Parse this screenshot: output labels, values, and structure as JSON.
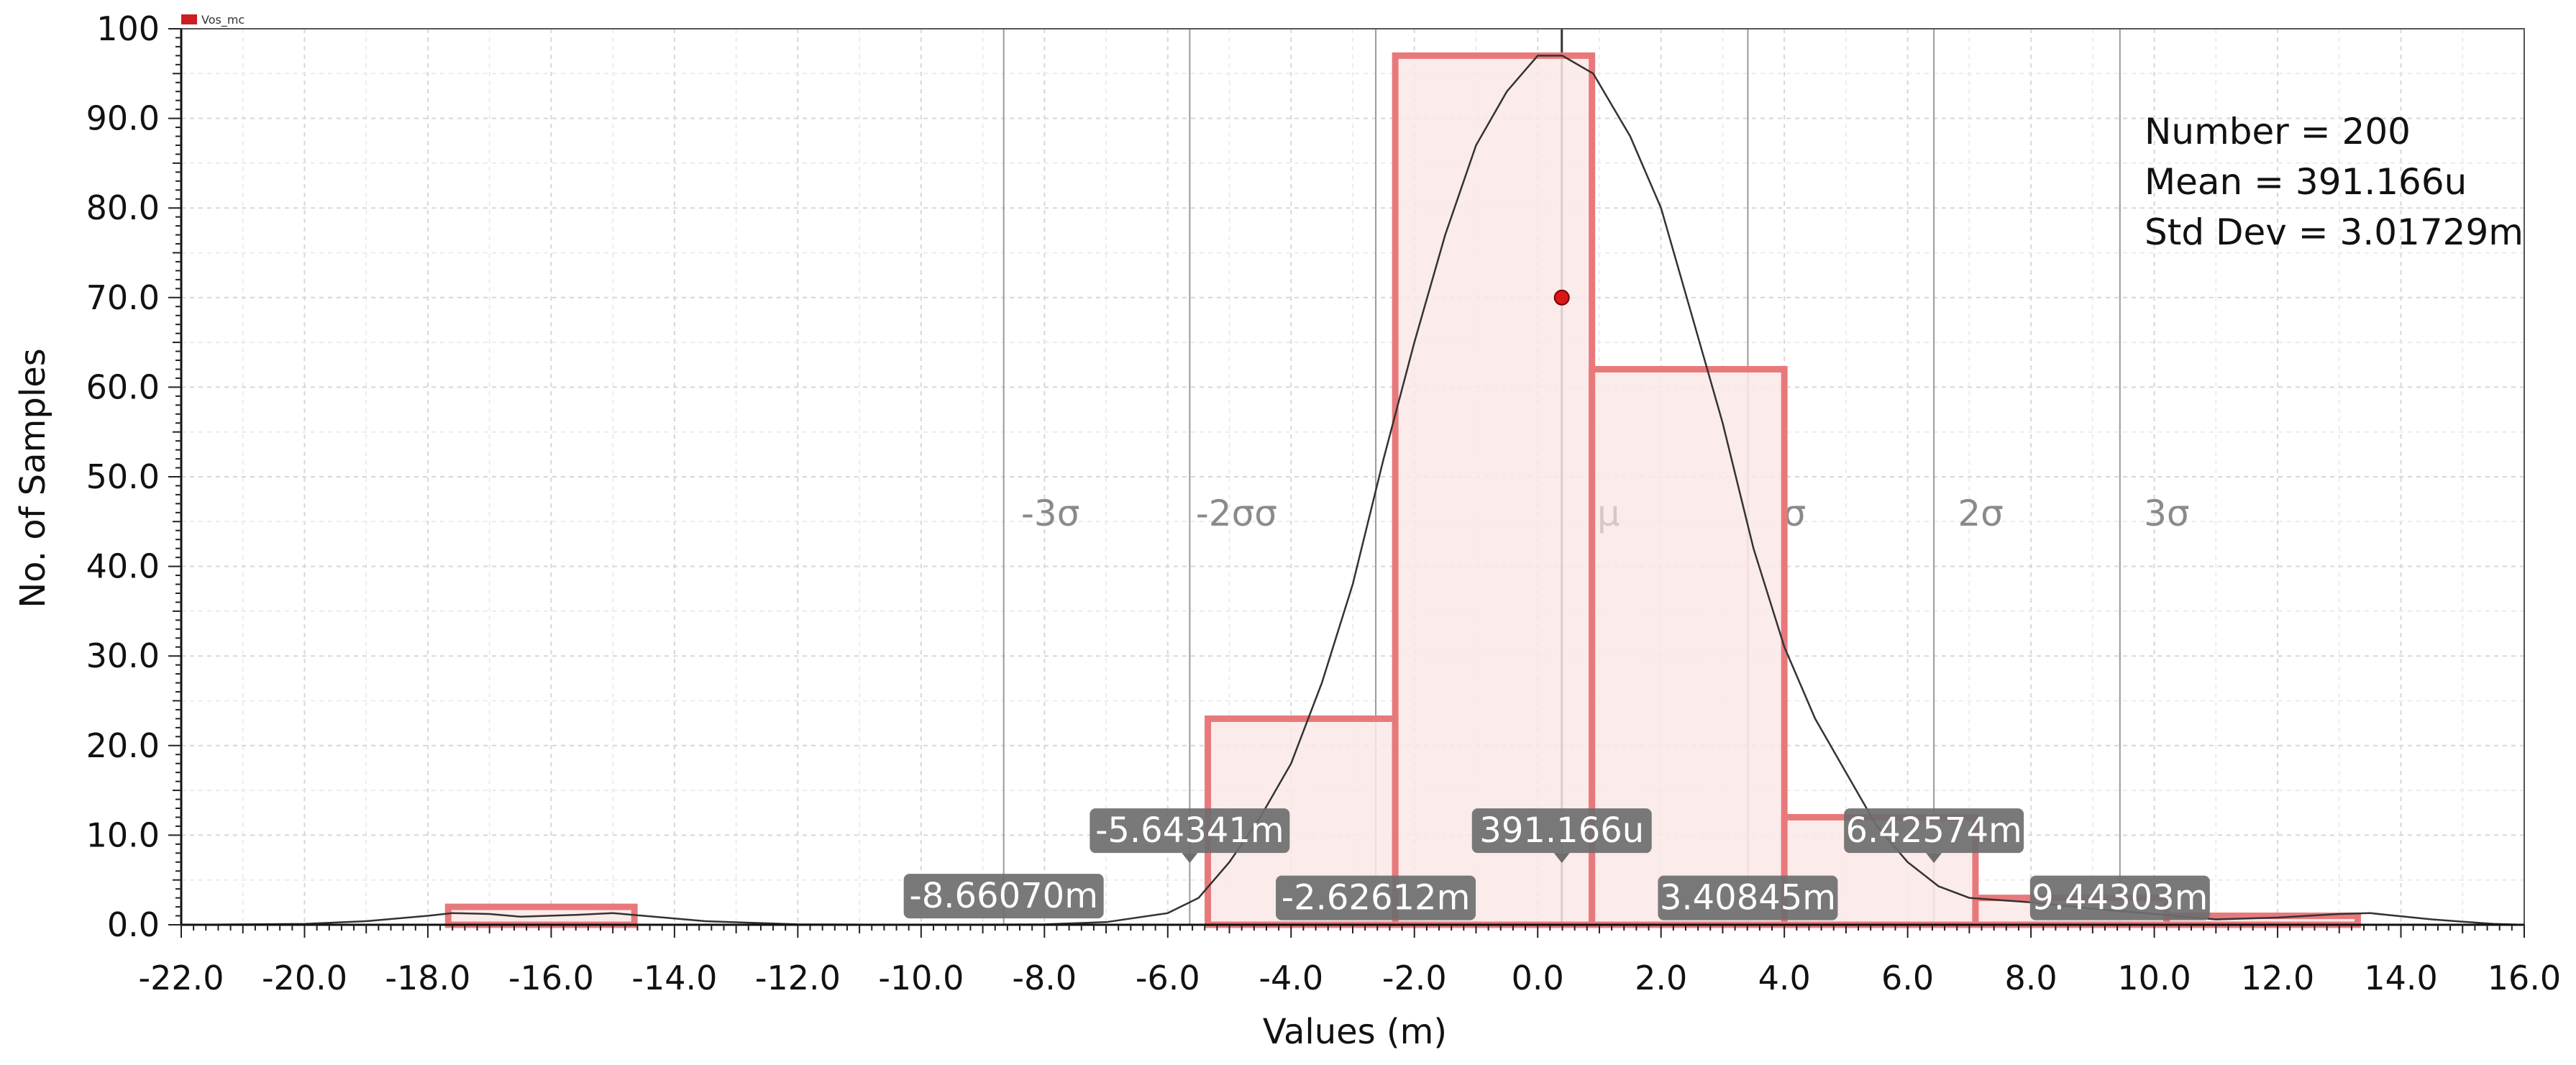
{
  "chart_data": {
    "type": "bar",
    "title": "",
    "legend": {
      "name": "Vos_mc",
      "color": "#cc1f1f",
      "placement": "top-left"
    },
    "xlabel": "Values (m)",
    "ylabel": "No. of Samples",
    "xlim": [
      -22.0,
      16.0
    ],
    "ylim": [
      0,
      100
    ],
    "x_ticks": [
      "-22.0",
      "-20.0",
      "-18.0",
      "-16.0",
      "-14.0",
      "-12.0",
      "-10.0",
      "-8.0",
      "-6.0",
      "-4.0",
      "-2.0",
      "0.0",
      "2.0",
      "4.0",
      "6.0",
      "8.0",
      "10.0",
      "12.0",
      "14.0",
      "16.0"
    ],
    "y_ticks": [
      "0.0",
      "10.0",
      "20.0",
      "30.0",
      "40.0",
      "50.0",
      "60.0",
      "70.0",
      "80.0",
      "90.0",
      "100"
    ],
    "grid": true,
    "bins": [
      {
        "x0": -17.67,
        "x1": -14.65,
        "count": 2
      },
      {
        "x0": -5.35,
        "x1": -2.31,
        "count": 23
      },
      {
        "x0": -2.31,
        "x1": 0.88,
        "count": 97
      },
      {
        "x0": 0.88,
        "x1": 4.0,
        "count": 62
      },
      {
        "x0": 4.0,
        "x1": 7.1,
        "count": 12
      },
      {
        "x0": 7.1,
        "x1": 10.2,
        "count": 3
      },
      {
        "x0": 10.2,
        "x1": 13.3,
        "count": 1
      }
    ],
    "bar_edge_color": "#e8797b",
    "bar_fill_color": "#fce8e8",
    "density_curve": {
      "color": "#333333",
      "points": [
        [
          -22,
          0
        ],
        [
          -20,
          0.1
        ],
        [
          -19,
          0.4
        ],
        [
          -18,
          1.0
        ],
        [
          -17.6,
          1.3
        ],
        [
          -17,
          1.2
        ],
        [
          -16.5,
          0.9
        ],
        [
          -15.6,
          1.1
        ],
        [
          -15,
          1.3
        ],
        [
          -14.5,
          1.0
        ],
        [
          -13.5,
          0.4
        ],
        [
          -12,
          0.05
        ],
        [
          -10,
          0
        ],
        [
          -8,
          0.05
        ],
        [
          -7,
          0.3
        ],
        [
          -6,
          1.3
        ],
        [
          -5.5,
          3
        ],
        [
          -5,
          7
        ],
        [
          -4.5,
          12
        ],
        [
          -4,
          18
        ],
        [
          -3.5,
          27
        ],
        [
          -3,
          38
        ],
        [
          -2.5,
          52
        ],
        [
          -2,
          65
        ],
        [
          -1.5,
          77
        ],
        [
          -1,
          87
        ],
        [
          -0.5,
          93
        ],
        [
          0,
          97
        ],
        [
          0.4,
          97
        ],
        [
          0.9,
          95
        ],
        [
          1.5,
          88
        ],
        [
          2,
          80
        ],
        [
          2.5,
          68
        ],
        [
          3,
          56
        ],
        [
          3.5,
          42
        ],
        [
          4,
          31
        ],
        [
          4.5,
          23
        ],
        [
          5,
          17
        ],
        [
          5.5,
          11
        ],
        [
          6,
          7
        ],
        [
          6.5,
          4.3
        ],
        [
          7,
          3
        ],
        [
          8,
          2.5
        ],
        [
          9,
          1.8
        ],
        [
          10,
          1.2
        ],
        [
          11,
          0.6
        ],
        [
          12,
          0.8
        ],
        [
          13,
          1.2
        ],
        [
          13.5,
          1.3
        ],
        [
          14.5,
          0.6
        ],
        [
          15.5,
          0.1
        ],
        [
          16,
          0
        ]
      ]
    },
    "mean_point": {
      "x": 0.391,
      "y": 70
    },
    "sigma_lines": [
      {
        "x": -8.6607,
        "label": "-3σ"
      },
      {
        "x": -5.64341,
        "label": "-2σσ"
      },
      {
        "x": -2.62612,
        "label": ""
      },
      {
        "x": 0.391166,
        "label": "μ",
        "is_mean": true
      },
      {
        "x": 3.40845,
        "label": "σ"
      },
      {
        "x": 6.42574,
        "label": "2σ"
      },
      {
        "x": 9.44303,
        "label": "3σ"
      }
    ],
    "sigma_label_y": 46,
    "markers": [
      {
        "x": -5.64341,
        "text": "-5.64341m",
        "y": 10.5,
        "pointer": true
      },
      {
        "x": 0.391166,
        "text": "391.166u",
        "y": 10.5,
        "pointer": true
      },
      {
        "x": 6.42574,
        "text": "6.42574m",
        "y": 10.5,
        "pointer": true
      },
      {
        "x": -8.6607,
        "text": "-8.66070m",
        "y": 3.2,
        "pointer": false
      },
      {
        "x": -2.62612,
        "text": "-2.62612m",
        "y": 3.0,
        "pointer": false
      },
      {
        "x": 3.40845,
        "text": "3.40845m",
        "y": 3.0,
        "pointer": false
      },
      {
        "x": 9.44303,
        "text": "9.44303m",
        "y": 3.0,
        "pointer": false
      }
    ],
    "stats": {
      "number": "Number = 200",
      "mean": "Mean = 391.166u",
      "std_dev": "Std Dev = 3.01729m"
    }
  }
}
